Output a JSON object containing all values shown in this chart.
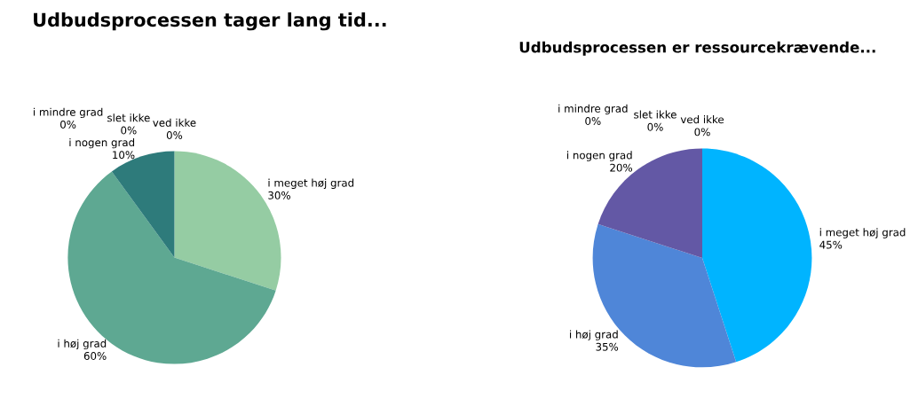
{
  "chart_data": [
    {
      "type": "pie",
      "title": "Udbudsprocessen tager lang tid...",
      "categories": [
        "i meget høj grad",
        "i høj grad",
        "i nogen grad",
        "i mindre grad",
        "slet ikke",
        "ved ikke"
      ],
      "values": [
        30,
        60,
        10,
        0,
        0,
        0
      ],
      "value_labels": [
        "30%",
        "60%",
        "10%",
        "0%",
        "0%",
        "0%"
      ],
      "colors": [
        "#95cca3",
        "#5ea892",
        "#2e7b7b",
        "#2a6f70",
        "#25625f",
        "#1f5552"
      ]
    },
    {
      "type": "pie",
      "title": "Udbudsprocessen er ressourcekrævende...",
      "categories": [
        "i meget høj grad",
        "i høj grad",
        "i nogen grad",
        "i mindre grad",
        "slet ikke",
        "ved ikke"
      ],
      "values": [
        45,
        35,
        20,
        0,
        0,
        0
      ],
      "value_labels": [
        "45%",
        "35%",
        "20%",
        "0%",
        "0%",
        "0%"
      ],
      "colors": [
        "#00b4ff",
        "#4f86d8",
        "#6358a5",
        "#55478f",
        "#4a3c80",
        "#3f3170"
      ]
    }
  ]
}
